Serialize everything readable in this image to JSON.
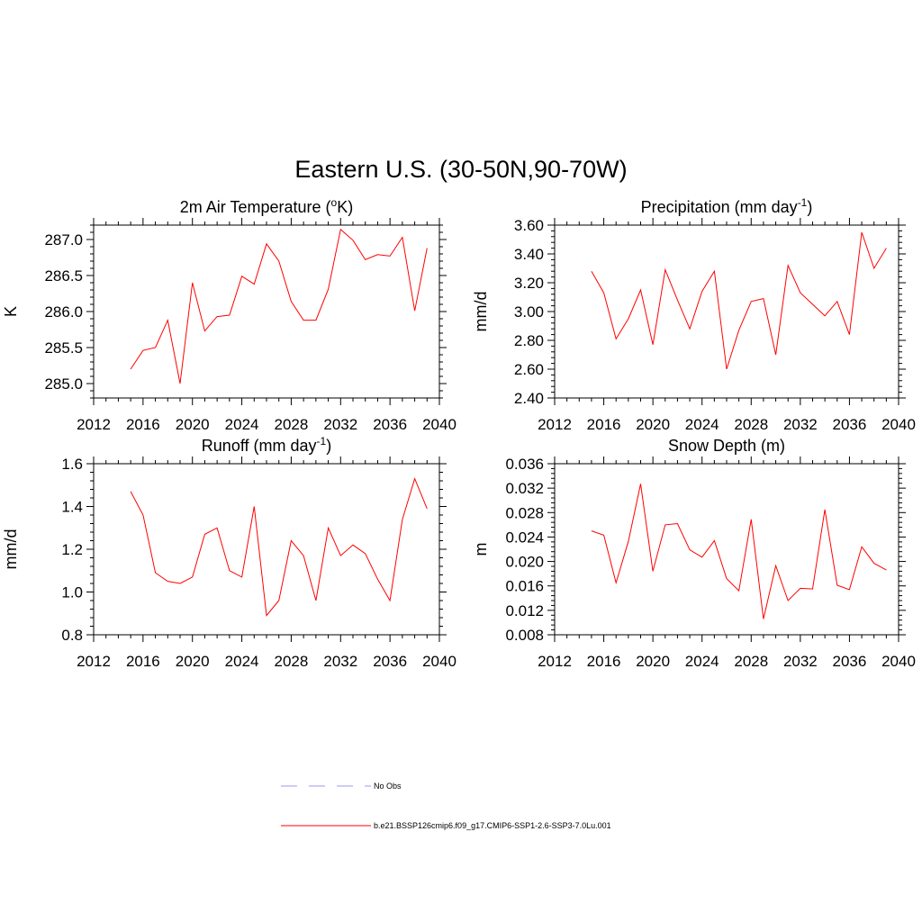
{
  "title": "Eastern U.S. (30-50N,90-70W)",
  "colors": {
    "model": "#ff0000",
    "obs": "#9999ee"
  },
  "legend": [
    {
      "label": "No Obs",
      "style": "dashed",
      "color": "#9999ee"
    },
    {
      "label": "b.e21.BSSP126cmip6.f09_g17.CMIP6-SSP1-2.6-SSP3-7.0Lu.001",
      "style": "solid",
      "color": "#ff0000"
    }
  ],
  "chart_data": [
    {
      "type": "line",
      "title": "2m Air Temperature (",
      "title_sup": "o",
      "title_after": "K)",
      "ylabel": "K",
      "xlim": [
        2012,
        2040
      ],
      "ylim": [
        284.8,
        287.2
      ],
      "xticks": [
        2012,
        2016,
        2020,
        2024,
        2028,
        2032,
        2036,
        2040
      ],
      "yticks": [
        "285.0",
        "285.5",
        "286.0",
        "286.5",
        "287.0"
      ],
      "x": [
        2015,
        2016,
        2017,
        2018,
        2019,
        2020,
        2021,
        2022,
        2023,
        2024,
        2025,
        2026,
        2027,
        2028,
        2029,
        2030,
        2031,
        2032,
        2033,
        2034,
        2035,
        2036,
        2037,
        2038,
        2039
      ],
      "series": [
        {
          "values": [
            285.2,
            285.46,
            285.5,
            285.88,
            285.0,
            286.4,
            285.73,
            285.93,
            285.95,
            286.49,
            286.38,
            286.94,
            286.7,
            286.14,
            285.88,
            285.88,
            286.31,
            287.14,
            286.99,
            286.72,
            286.79,
            286.77,
            287.03,
            286.01,
            286.88
          ]
        }
      ]
    },
    {
      "type": "line",
      "title": "Precipitation (mm day",
      "title_sup": "-1",
      "title_after": ")",
      "ylabel": "mm/d",
      "xlim": [
        2012,
        2040
      ],
      "ylim": [
        2.4,
        3.6
      ],
      "xticks": [
        2012,
        2016,
        2020,
        2024,
        2028,
        2032,
        2036,
        2040
      ],
      "yticks": [
        "2.40",
        "2.60",
        "2.80",
        "3.00",
        "3.20",
        "3.40",
        "3.60"
      ],
      "x": [
        2015,
        2016,
        2017,
        2018,
        2019,
        2020,
        2021,
        2022,
        2023,
        2024,
        2025,
        2026,
        2027,
        2028,
        2029,
        2030,
        2031,
        2032,
        2033,
        2034,
        2035,
        2036,
        2037,
        2038,
        2039
      ],
      "series": [
        {
          "values": [
            3.28,
            3.13,
            2.81,
            2.95,
            3.15,
            2.77,
            3.29,
            3.08,
            2.88,
            3.14,
            3.28,
            2.6,
            2.87,
            3.07,
            3.09,
            2.7,
            3.32,
            3.13,
            3.05,
            2.97,
            3.07,
            2.84,
            3.55,
            3.3,
            3.44
          ]
        }
      ]
    },
    {
      "type": "line",
      "title": "Runoff (mm day",
      "title_sup": "-1",
      "title_after": ")",
      "ylabel": "mm/d",
      "xlim": [
        2012,
        2040
      ],
      "ylim": [
        0.8,
        1.6
      ],
      "xticks": [
        2012,
        2016,
        2020,
        2024,
        2028,
        2032,
        2036,
        2040
      ],
      "yticks": [
        "0.8",
        "1.0",
        "1.2",
        "1.4",
        "1.6"
      ],
      "x": [
        2015,
        2016,
        2017,
        2018,
        2019,
        2020,
        2021,
        2022,
        2023,
        2024,
        2025,
        2026,
        2027,
        2028,
        2029,
        2030,
        2031,
        2032,
        2033,
        2034,
        2035,
        2036,
        2037,
        2038,
        2039
      ],
      "series": [
        {
          "values": [
            1.47,
            1.36,
            1.09,
            1.05,
            1.04,
            1.07,
            1.27,
            1.3,
            1.1,
            1.07,
            1.4,
            0.89,
            0.96,
            1.24,
            1.17,
            0.96,
            1.3,
            1.17,
            1.22,
            1.18,
            1.06,
            0.96,
            1.34,
            1.53,
            1.39
          ]
        }
      ]
    },
    {
      "type": "line",
      "title": "Snow Depth (m)",
      "title_sup": "",
      "title_after": "",
      "ylabel": "m",
      "xlim": [
        2012,
        2040
      ],
      "ylim": [
        0.008,
        0.036
      ],
      "xticks": [
        2012,
        2016,
        2020,
        2024,
        2028,
        2032,
        2036,
        2040
      ],
      "yticks": [
        "0.008",
        "0.012",
        "0.016",
        "0.020",
        "0.024",
        "0.028",
        "0.032",
        "0.036"
      ],
      "x": [
        2015,
        2016,
        2017,
        2018,
        2019,
        2020,
        2021,
        2022,
        2023,
        2024,
        2025,
        2026,
        2027,
        2028,
        2029,
        2030,
        2031,
        2032,
        2033,
        2034,
        2035,
        2036,
        2037,
        2038,
        2039
      ],
      "series": [
        {
          "values": [
            0.025,
            0.0243,
            0.0165,
            0.0233,
            0.0327,
            0.0184,
            0.026,
            0.0262,
            0.0219,
            0.0207,
            0.0234,
            0.0172,
            0.0152,
            0.0269,
            0.0106,
            0.0193,
            0.0136,
            0.0156,
            0.0155,
            0.0285,
            0.0161,
            0.0154,
            0.0224,
            0.0197,
            0.0186
          ]
        }
      ]
    }
  ]
}
